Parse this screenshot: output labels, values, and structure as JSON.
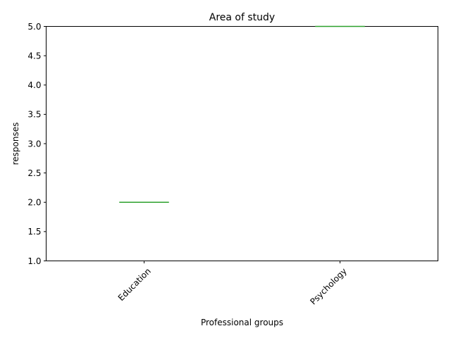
{
  "chart_data": {
    "type": "box",
    "title": "Area of study",
    "xlabel": "Professional groups",
    "ylabel": "responses",
    "categories": [
      "Education",
      "Psychology"
    ],
    "values": [
      2.0,
      5.0
    ],
    "ylim": [
      1.0,
      5.0
    ],
    "yticks": [
      "1.0",
      "1.5",
      "2.0",
      "2.5",
      "3.0",
      "3.5",
      "4.0",
      "4.5",
      "5.0"
    ],
    "grid": false,
    "colors": {
      "median": "#2ca02c",
      "axes": "#000000"
    }
  }
}
